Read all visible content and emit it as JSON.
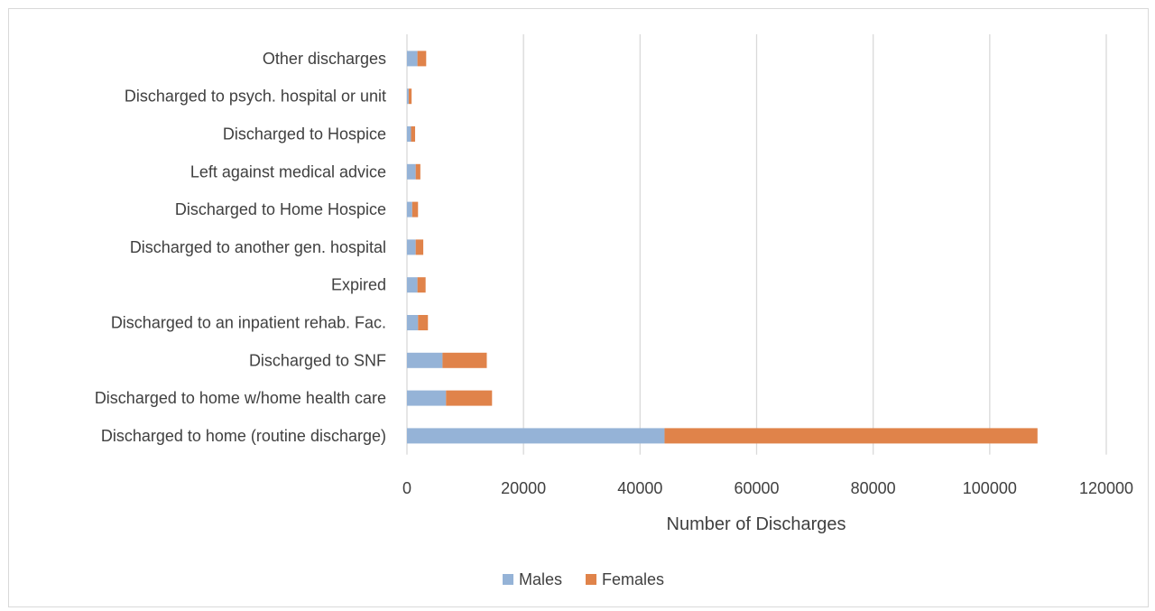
{
  "chart_data": {
    "type": "bar",
    "orientation": "horizontal",
    "stacked": true,
    "title": "",
    "xlabel": "Number of Discharges",
    "ylabel": "",
    "xlim": [
      0,
      120000
    ],
    "x_ticks": [
      0,
      20000,
      40000,
      60000,
      80000,
      100000,
      120000
    ],
    "grid": "vertical",
    "legend_position": "bottom",
    "categories": [
      "Discharged to home (routine discharge)",
      "Discharged to home w/home health care",
      "Discharged to SNF",
      "Discharged to an inpatient rehab. Fac.",
      "Expired",
      "Discharged to another gen. hospital",
      "Discharged to Home Hospice",
      "Left against medical advice",
      "Discharged to Hospice",
      "Discharged to psych. hospital or unit",
      "Other discharges"
    ],
    "series": [
      {
        "name": "Males",
        "color": "#95b3d7",
        "values": [
          44200,
          6700,
          6100,
          1900,
          1800,
          1500,
          900,
          1500,
          700,
          300,
          1800
        ]
      },
      {
        "name": "Females",
        "color": "#e0834a",
        "values": [
          64000,
          7900,
          7600,
          1700,
          1400,
          1300,
          1000,
          800,
          700,
          500,
          1500
        ]
      }
    ]
  }
}
